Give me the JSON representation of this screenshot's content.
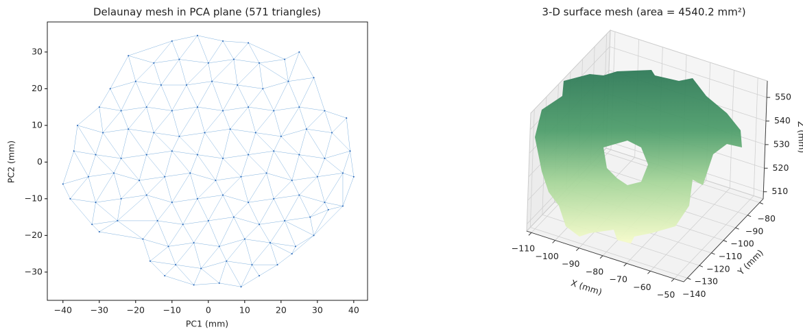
{
  "chart_data": [
    {
      "type": "triplot",
      "title": "Delaunay mesh in PCA plane  (571 triangles)",
      "xlabel": "PC1 (mm)",
      "ylabel": "PC2 (mm)",
      "point_color": "#1f5fb4",
      "edge_color": "#5b9bd5",
      "xlim": [
        -44.3,
        43.8
      ],
      "ylim": [
        -37.7,
        38.2
      ],
      "xticks": [
        {
          "value": -40,
          "label": "−40"
        },
        {
          "value": -30,
          "label": "−30"
        },
        {
          "value": -20,
          "label": "−20"
        },
        {
          "value": -10,
          "label": "−10"
        },
        0,
        10,
        20,
        30,
        40
      ],
      "yticks": [
        {
          "value": -30,
          "label": "−30"
        },
        {
          "value": -20,
          "label": "−20"
        },
        {
          "value": -10,
          "label": "−10"
        },
        0,
        10,
        20,
        30
      ],
      "x": [
        -10,
        -3,
        4,
        11,
        -22,
        -15,
        -8,
        0,
        7,
        14,
        21,
        25,
        -27,
        -20,
        -13,
        -6,
        1,
        8,
        15,
        22,
        29,
        -30,
        -24,
        -17,
        -10,
        -3,
        4,
        11,
        18,
        25,
        32,
        -36,
        -29,
        -22,
        -15,
        -8,
        -1,
        6,
        13,
        20,
        27,
        34,
        38,
        -37,
        -31,
        -24,
        -17,
        -10,
        -3,
        4,
        11,
        18,
        25,
        32,
        39,
        -40,
        -33,
        -26,
        -19,
        -12,
        -5,
        2,
        9,
        16,
        23,
        30,
        37,
        40,
        -38,
        -31,
        -24,
        -17,
        -10,
        -3,
        4,
        11,
        18,
        25,
        32,
        37,
        -32,
        -25,
        -14,
        -7,
        0,
        7,
        14,
        21,
        28,
        33,
        -30,
        -18,
        -11,
        -4,
        3,
        10,
        17,
        24,
        29,
        -16,
        -9,
        -2,
        5,
        12,
        19,
        23,
        -12,
        -4,
        3,
        9,
        14
      ],
      "y": [
        33,
        34.5,
        33,
        32.5,
        29,
        27,
        28,
        27,
        28,
        27,
        28,
        30,
        20,
        22,
        21,
        21,
        22,
        21,
        20,
        22,
        23,
        15,
        14,
        15,
        14,
        15,
        14,
        15,
        14,
        15,
        14,
        10,
        8,
        9,
        8,
        7,
        8,
        9,
        8,
        7,
        9,
        8,
        12,
        3,
        2,
        1,
        2,
        3,
        2,
        1,
        2,
        3,
        2,
        1,
        3,
        -6,
        -4,
        -3,
        -5,
        -4,
        -3,
        -5,
        -4,
        -3,
        -5,
        -4,
        -3,
        -4,
        -10,
        -11,
        -10,
        -9,
        -11,
        -10,
        -9,
        -11,
        -10,
        -9,
        -11,
        -12,
        -17,
        -16,
        -16,
        -17,
        -16,
        -15,
        -17,
        -16,
        -15,
        -13,
        -19,
        -21,
        -23,
        -22,
        -23,
        -21,
        -22,
        -23,
        -20,
        -27,
        -28,
        -29,
        -27,
        -28,
        -28,
        -25,
        -31,
        -33.5,
        -33,
        -34,
        -31
      ]
    },
    {
      "type": "surface3d",
      "title": "3-D surface mesh  (area = 4540.2 mm²)",
      "xlabel": "X (mm)",
      "ylabel": "Y (mm)",
      "zlabel": "Z (mm)",
      "xlim": [
        -112,
        -46
      ],
      "ylim": [
        -143,
        -77
      ],
      "zlim": [
        507,
        557
      ],
      "xticks": [
        {
          "value": -110,
          "label": "−110"
        },
        {
          "value": -100,
          "label": "−100"
        },
        {
          "value": -90,
          "label": "−90"
        },
        {
          "value": -80,
          "label": "−80"
        },
        {
          "value": -70,
          "label": "−70"
        },
        {
          "value": -60,
          "label": "−60"
        },
        {
          "value": -50,
          "label": "−50"
        }
      ],
      "yticks": [
        {
          "value": -140,
          "label": "−140"
        },
        {
          "value": -130,
          "label": "−130"
        },
        {
          "value": -120,
          "label": "−120"
        },
        {
          "value": -110,
          "label": "−110"
        },
        {
          "value": -100,
          "label": "−100"
        },
        {
          "value": -90,
          "label": "−90"
        },
        {
          "value": -80,
          "label": "−80"
        }
      ],
      "zticks": [
        510,
        520,
        530,
        540,
        550
      ],
      "grid": true
    }
  ]
}
